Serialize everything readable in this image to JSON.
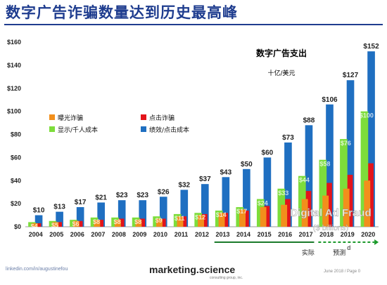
{
  "page": {
    "title": "数字广告诈骗数量达到历史最高峰",
    "footer_left": "linkedin.com/in/augustinefou",
    "brand": "marketing.science",
    "brand_sub": "consulting group, inc.",
    "footer_right": "June 2018 / Page 0"
  },
  "chart_data": {
    "type": "bar",
    "title": "数字广告支出",
    "subtitle": "十亿/美元",
    "categories": [
      "2004",
      "2005",
      "2006",
      "2007",
      "2008",
      "2009",
      "2010",
      "2011",
      "2012",
      "2013",
      "2014",
      "2015",
      "2016",
      "2017",
      "2018",
      "2019",
      "2020"
    ],
    "ylim": [
      0,
      160
    ],
    "yticks": [
      "$0",
      "$20",
      "$40",
      "$60",
      "$80",
      "$100",
      "$120",
      "$140",
      "$160"
    ],
    "grid": false,
    "legend_position": "upper-left",
    "totals": [
      10,
      13,
      17,
      21,
      23,
      23,
      26,
      32,
      37,
      43,
      50,
      60,
      73,
      88,
      106,
      127,
      152
    ],
    "total_labels": [
      "$10",
      "$13",
      "$17",
      "$21",
      "$23",
      "$23",
      "$26",
      "$32",
      "$37",
      "$43",
      "$50",
      "$60",
      "$73",
      "$88",
      "$106",
      "$127",
      "$152"
    ],
    "series": [
      {
        "name": "曝光诈骗",
        "color": "#f28f1c",
        "values": [
          3,
          4,
          5,
          6,
          6,
          6,
          7,
          9,
          10,
          12,
          15,
          17,
          19,
          24,
          27,
          33,
          40
        ]
      },
      {
        "name": "点击诈骗",
        "color": "#e3141b",
        "values": [
          3,
          4,
          5,
          6,
          7,
          7,
          7,
          9,
          11,
          12,
          14,
          18,
          24,
          31,
          38,
          45,
          55
        ]
      },
      {
        "name": "显示/千人成本",
        "color": "#7ddd3b",
        "values": [
          4,
          5,
          6,
          8,
          8,
          8,
          9,
          11,
          12,
          14,
          17,
          24,
          33,
          44,
          58,
          76,
          100
        ]
      },
      {
        "name": "绩效/点击成本",
        "color": "#1f6fc1",
        "values": [
          10,
          13,
          17,
          21,
          23,
          23,
          26,
          32,
          37,
          43,
          50,
          60,
          73,
          88,
          106,
          127,
          152
        ]
      }
    ],
    "value_labels": [
      "$4",
      "$5",
      "$6",
      "$8",
      "$8",
      "$8",
      "$9",
      "$11",
      "$12",
      "$14",
      "$17",
      "$24",
      "$33",
      "$44",
      "$58",
      "$76",
      "$100"
    ],
    "annotations": {
      "overlay_title": "Digital Ad Fraud",
      "overlay_subtitle": "($ billions)",
      "actual_label": "实际",
      "forecast_label": "预测",
      "forecast_mark": "d"
    }
  }
}
